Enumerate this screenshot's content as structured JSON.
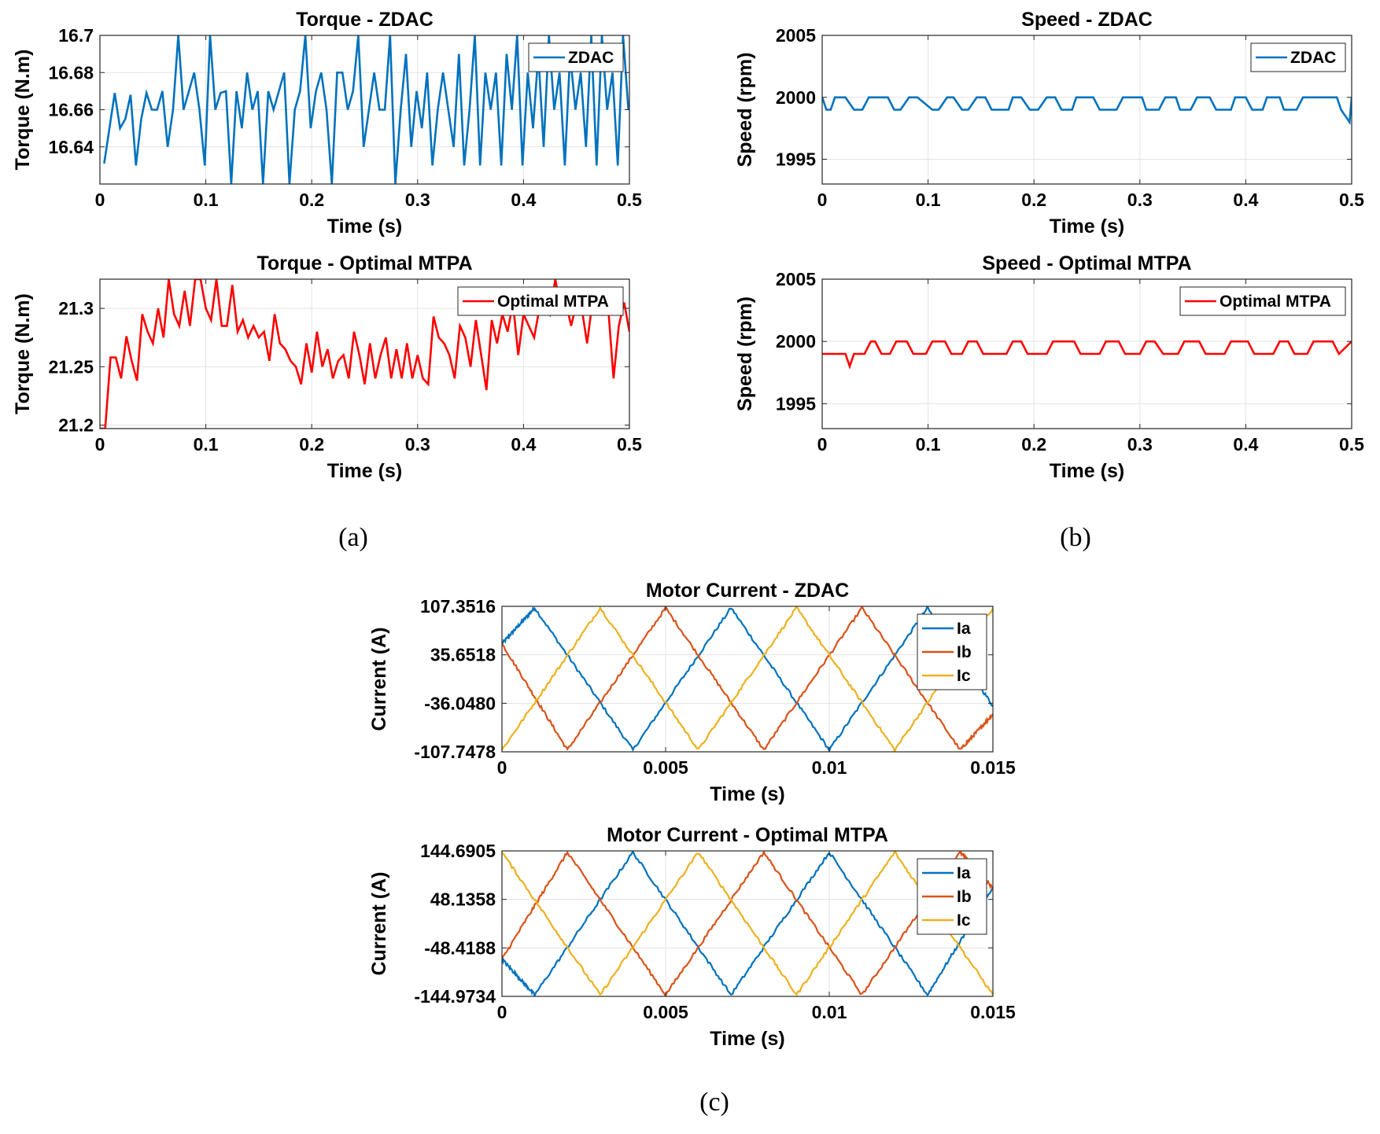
{
  "colors": {
    "blue": "#0072BD",
    "orange": "#D95319",
    "yellow": "#EDB120",
    "red": "#FF0000"
  },
  "captions": [
    "(a)",
    "(b)",
    "(c)"
  ],
  "chart_data": [
    {
      "type": "line",
      "title": "Torque - ZDAC",
      "xlabel": "Time (s)",
      "ylabel": "Torque (N.m)",
      "xlim": [
        0,
        0.5
      ],
      "ylim": [
        16.62,
        16.7
      ],
      "xticks": [
        0,
        0.1,
        0.2,
        0.3,
        0.4,
        0.5
      ],
      "xtick_labels": [
        "0",
        "0.1",
        "0.2",
        "0.3",
        "0.4",
        "0.5"
      ],
      "yticks": [
        16.64,
        16.66,
        16.68,
        16.7
      ],
      "ytick_labels": [
        "16.64",
        "16.66",
        "16.68",
        "16.7"
      ],
      "grid": true,
      "legend_position": "top-right",
      "series": [
        {
          "name": "ZDAC",
          "color": "#0072BD",
          "x_start": 0.004,
          "x_step": 0.005,
          "values": [
            16.631,
            16.65,
            16.669,
            16.65,
            16.655,
            16.668,
            16.63,
            16.655,
            16.669,
            16.66,
            16.66,
            16.67,
            16.64,
            16.66,
            16.7,
            16.66,
            16.67,
            16.68,
            16.66,
            16.63,
            16.7,
            16.66,
            16.669,
            16.67,
            16.62,
            16.67,
            16.65,
            16.68,
            16.66,
            16.67,
            16.62,
            16.67,
            16.66,
            16.67,
            16.68,
            16.62,
            16.66,
            16.67,
            16.7,
            16.65,
            16.67,
            16.68,
            16.66,
            16.62,
            16.68,
            16.68,
            16.66,
            16.67,
            16.7,
            16.64,
            16.66,
            16.68,
            16.66,
            16.66,
            16.7,
            16.62,
            16.66,
            16.69,
            16.64,
            16.67,
            16.65,
            16.68,
            16.63,
            16.66,
            16.68,
            16.66,
            16.64,
            16.69,
            16.63,
            16.66,
            16.7,
            16.63,
            16.68,
            16.66,
            16.68,
            16.63,
            16.69,
            16.66,
            16.7,
            16.63,
            16.68,
            16.65,
            16.69,
            16.64,
            16.7,
            16.66,
            16.68,
            16.63,
            16.69,
            16.66,
            16.68,
            16.64,
            16.7,
            16.63,
            16.7,
            16.66,
            16.68,
            16.63,
            16.7,
            16.66
          ]
        }
      ]
    },
    {
      "type": "line",
      "title": "Torque - Optimal MTPA",
      "xlabel": "Time (s)",
      "ylabel": "Torque (N.m)",
      "xlim": [
        0,
        0.5
      ],
      "ylim": [
        21.197,
        21.325
      ],
      "xticks": [
        0,
        0.1,
        0.2,
        0.3,
        0.4,
        0.5
      ],
      "xtick_labels": [
        "0",
        "0.1",
        "0.2",
        "0.3",
        "0.4",
        "0.5"
      ],
      "yticks": [
        21.2,
        21.25,
        21.3
      ],
      "ytick_labels": [
        "21.2",
        "21.25",
        "21.3"
      ],
      "grid": true,
      "legend_position": "top-right",
      "series": [
        {
          "name": "Optimal MTPA",
          "color": "#FF0000",
          "x_start": 0,
          "x_step": 0.005,
          "values": [
            21.197,
            21.197,
            21.258,
            21.258,
            21.24,
            21.276,
            21.255,
            21.238,
            21.295,
            21.28,
            21.27,
            21.3,
            21.275,
            21.325,
            21.295,
            21.285,
            21.315,
            21.285,
            21.325,
            21.325,
            21.3,
            21.29,
            21.325,
            21.285,
            21.285,
            21.32,
            21.28,
            21.29,
            21.275,
            21.285,
            21.275,
            21.28,
            21.255,
            21.295,
            21.27,
            21.265,
            21.255,
            21.25,
            21.235,
            21.27,
            21.245,
            21.28,
            21.25,
            21.265,
            21.24,
            21.255,
            21.26,
            21.24,
            21.28,
            21.26,
            21.235,
            21.27,
            21.24,
            21.26,
            21.275,
            21.24,
            21.265,
            21.24,
            21.27,
            21.24,
            21.26,
            21.24,
            21.235,
            21.293,
            21.275,
            21.27,
            21.26,
            21.24,
            21.285,
            21.275,
            21.25,
            21.29,
            21.26,
            21.23,
            21.29,
            21.27,
            21.295,
            21.28,
            21.305,
            21.26,
            21.295,
            21.285,
            21.275,
            21.3,
            21.305,
            21.295,
            21.325,
            21.3,
            21.305,
            21.285,
            21.305,
            21.3,
            21.27,
            21.305,
            21.31,
            21.295,
            21.3,
            21.24,
            21.285,
            21.305,
            21.28
          ]
        }
      ]
    },
    {
      "type": "line",
      "title": "Speed - ZDAC",
      "xlabel": "Time (s)",
      "ylabel": "Speed (rpm)",
      "xlim": [
        0,
        0.5
      ],
      "ylim": [
        1993,
        2005
      ],
      "xticks": [
        0,
        0.1,
        0.2,
        0.3,
        0.4,
        0.5
      ],
      "xtick_labels": [
        "0",
        "0.1",
        "0.2",
        "0.3",
        "0.4",
        "0.5"
      ],
      "yticks": [
        1995,
        2000,
        2005
      ],
      "ytick_labels": [
        "1995",
        "2000",
        "2005"
      ],
      "grid": true,
      "legend_position": "top-right",
      "series": [
        {
          "name": "ZDAC",
          "color": "#0072BD",
          "x": [
            0,
            0.004,
            0.008,
            0.012,
            0.022,
            0.03,
            0.038,
            0.044,
            0.052,
            0.062,
            0.068,
            0.074,
            0.082,
            0.09,
            0.104,
            0.11,
            0.118,
            0.124,
            0.132,
            0.138,
            0.146,
            0.154,
            0.16,
            0.176,
            0.18,
            0.188,
            0.196,
            0.204,
            0.212,
            0.22,
            0.226,
            0.236,
            0.24,
            0.256,
            0.262,
            0.278,
            0.284,
            0.302,
            0.306,
            0.318,
            0.324,
            0.334,
            0.338,
            0.348,
            0.354,
            0.366,
            0.372,
            0.386,
            0.39,
            0.4,
            0.406,
            0.416,
            0.42,
            0.432,
            0.436,
            0.448,
            0.454,
            0.462,
            0.468,
            0.486,
            0.49,
            0.498,
            0.5
          ],
          "values": [
            2000,
            1999,
            1999,
            2000,
            2000,
            1999,
            1999,
            2000,
            2000,
            2000,
            1999,
            1999,
            2000,
            2000,
            1999,
            1999,
            2000,
            2000,
            1999,
            1999,
            2000,
            2000,
            1999,
            1999,
            2000,
            2000,
            1999,
            1999,
            2000,
            2000,
            1999,
            1999,
            2000,
            2000,
            1999,
            1999,
            2000,
            2000,
            1999,
            1999,
            2000,
            2000,
            1999,
            1999,
            2000,
            2000,
            1999,
            1999,
            2000,
            2000,
            1999,
            1999,
            2000,
            2000,
            1999,
            1999,
            2000,
            2000,
            2000,
            2000,
            1999,
            1998,
            2000
          ]
        }
      ]
    },
    {
      "type": "line",
      "title": "Speed - Optimal MTPA",
      "xlabel": "Time (s)",
      "ylabel": "Speed (rpm)",
      "xlim": [
        0,
        0.5
      ],
      "ylim": [
        1993,
        2005
      ],
      "xticks": [
        0,
        0.1,
        0.2,
        0.3,
        0.4,
        0.5
      ],
      "xtick_labels": [
        "0",
        "0.1",
        "0.2",
        "0.3",
        "0.4",
        "0.5"
      ],
      "yticks": [
        1995,
        2000,
        2005
      ],
      "ytick_labels": [
        "1995",
        "2000",
        "2005"
      ],
      "grid": true,
      "legend_position": "top-right",
      "series": [
        {
          "name": "Optimal MTPA",
          "color": "#FF0000",
          "x": [
            0,
            0.022,
            0.026,
            0.03,
            0.04,
            0.046,
            0.05,
            0.056,
            0.064,
            0.07,
            0.08,
            0.086,
            0.098,
            0.104,
            0.116,
            0.122,
            0.132,
            0.138,
            0.146,
            0.152,
            0.174,
            0.18,
            0.188,
            0.194,
            0.212,
            0.218,
            0.238,
            0.244,
            0.262,
            0.268,
            0.28,
            0.286,
            0.3,
            0.306,
            0.314,
            0.322,
            0.336,
            0.342,
            0.356,
            0.362,
            0.38,
            0.386,
            0.402,
            0.408,
            0.426,
            0.432,
            0.44,
            0.446,
            0.458,
            0.464,
            0.482,
            0.488,
            0.5
          ],
          "values": [
            1999,
            1999,
            1998,
            1999,
            1999,
            2000,
            2000,
            1999,
            1999,
            2000,
            2000,
            1999,
            1999,
            2000,
            2000,
            1999,
            1999,
            2000,
            2000,
            1999,
            1999,
            2000,
            2000,
            1999,
            1999,
            2000,
            2000,
            1999,
            1999,
            2000,
            2000,
            1999,
            1999,
            2000,
            2000,
            1999,
            1999,
            2000,
            2000,
            1999,
            1999,
            2000,
            2000,
            1999,
            1999,
            2000,
            2000,
            1999,
            1999,
            2000,
            2000,
            1999,
            2000
          ]
        }
      ]
    },
    {
      "type": "line",
      "title": "Motor Current - ZDAC",
      "xlabel": "Time (s)",
      "ylabel": "Current (A)",
      "xlim": [
        0,
        0.015
      ],
      "ylim": [
        -107.7478,
        107.3516
      ],
      "xticks": [
        0,
        0.005,
        0.01,
        0.015
      ],
      "xtick_labels": [
        "0",
        "0.005",
        "0.01",
        "0.015"
      ],
      "yticks": [
        -107.7478,
        -36.048,
        35.6518,
        107.3516
      ],
      "ytick_labels": [
        "-107.7478",
        "-36.0480",
        "35.6518",
        "107.3516"
      ],
      "grid": true,
      "legend_position": "top-right",
      "waveform": {
        "shape": "triangular",
        "amplitude": 105,
        "period_s": 0.006,
        "noisy": true
      },
      "series": [
        {
          "name": "Ia",
          "color": "#0072BD",
          "x": [
            0,
            0.001,
            0.004,
            0.007,
            0.01,
            0.013,
            0.015
          ],
          "values": [
            52,
            105,
            -105,
            105,
            -105,
            105,
            -40
          ]
        },
        {
          "name": "Ib",
          "color": "#D95319",
          "x": [
            0,
            0.002,
            0.005,
            0.008,
            0.011,
            0.014,
            0.015
          ],
          "values": [
            52,
            -105,
            105,
            -105,
            105,
            -105,
            -52
          ]
        },
        {
          "name": "Ic",
          "color": "#EDB120",
          "x": [
            0,
            0.003,
            0.006,
            0.009,
            0.012,
            0.015
          ],
          "values": [
            -105,
            105,
            -105,
            105,
            -105,
            105
          ]
        }
      ]
    },
    {
      "type": "line",
      "title": "Motor Current - Optimal MTPA",
      "xlabel": "Time (s)",
      "ylabel": "Current (A)",
      "xlim": [
        0,
        0.015
      ],
      "ylim": [
        -144.9734,
        144.6905
      ],
      "xticks": [
        0,
        0.005,
        0.01,
        0.015
      ],
      "xtick_labels": [
        "0",
        "0.005",
        "0.01",
        "0.015"
      ],
      "yticks": [
        -144.9734,
        -48.4188,
        48.1358,
        144.6905
      ],
      "ytick_labels": [
        "-144.9734",
        "-48.4188",
        "48.1358",
        "144.6905"
      ],
      "grid": true,
      "legend_position": "top-right",
      "waveform": {
        "shape": "triangular",
        "amplitude": 142,
        "period_s": 0.006,
        "noisy": true
      },
      "series": [
        {
          "name": "Ia",
          "color": "#0072BD",
          "x": [
            0,
            0.001,
            0.004,
            0.007,
            0.01,
            0.013,
            0.015
          ],
          "values": [
            -71,
            -142,
            142,
            -142,
            142,
            -142,
            71
          ]
        },
        {
          "name": "Ib",
          "color": "#D95319",
          "x": [
            0,
            0.002,
            0.005,
            0.008,
            0.011,
            0.014,
            0.015
          ],
          "values": [
            -71,
            142,
            -142,
            142,
            -142,
            142,
            71
          ]
        },
        {
          "name": "Ic",
          "color": "#EDB120",
          "x": [
            0,
            0.003,
            0.006,
            0.009,
            0.012,
            0.015
          ],
          "values": [
            142,
            -142,
            142,
            -142,
            142,
            -142
          ]
        }
      ]
    }
  ]
}
